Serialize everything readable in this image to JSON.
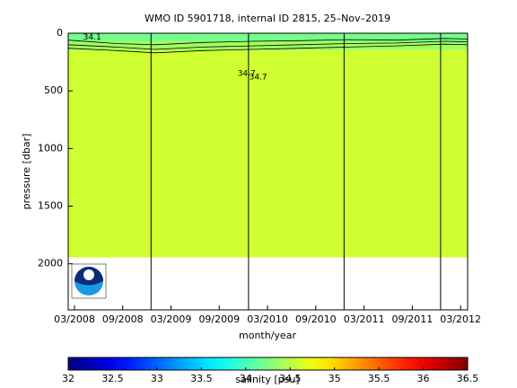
{
  "chart_data": {
    "type": "section",
    "title": "WMO ID 5901718, internal ID 2815, 25–Nov–2019",
    "x_label": "month/year",
    "y_label": "pressure [dbar]",
    "xlim": [
      2008.102,
      2012.24
    ],
    "xticks": [
      {
        "value": 2008.167,
        "label": "03/2008"
      },
      {
        "value": 2008.667,
        "label": "09/2008"
      },
      {
        "value": 2009.167,
        "label": "03/2009"
      },
      {
        "value": 2009.667,
        "label": "09/2009"
      },
      {
        "value": 2010.167,
        "label": "03/2010"
      },
      {
        "value": 2010.667,
        "label": "09/2010"
      },
      {
        "value": 2011.167,
        "label": "03/2011"
      },
      {
        "value": 2011.667,
        "label": "09/2011"
      },
      {
        "value": 2012.167,
        "label": "03/2012"
      }
    ],
    "ylim": [
      0,
      2400
    ],
    "y_inverted": true,
    "yticks": [
      0,
      500,
      1000,
      1500,
      2000
    ],
    "layers": [
      {
        "top": 0,
        "bottom": 70,
        "value": 34.2
      },
      {
        "top": 70,
        "bottom": 150,
        "value": 34.4
      },
      {
        "top": 150,
        "bottom": 1945,
        "value": 34.6
      }
    ],
    "contours": [
      {
        "x": [
          2008.1,
          2008.6,
          2009.0,
          2009.5,
          2010.0,
          2010.5,
          2011.0,
          2011.5,
          2012.0,
          2012.24
        ],
        "values": [
          60,
          90,
          100,
          80,
          70,
          65,
          55,
          60,
          45,
          50
        ]
      },
      {
        "x": [
          2008.1,
          2008.6,
          2009.0,
          2009.5,
          2010.0,
          2010.5,
          2011.0,
          2011.5,
          2012.0,
          2012.24
        ],
        "values": [
          100,
          120,
          140,
          120,
          110,
          100,
          90,
          85,
          70,
          75
        ]
      },
      {
        "x": [
          2008.1,
          2008.6,
          2009.0,
          2009.5,
          2010.0,
          2010.5,
          2011.0,
          2011.5,
          2012.0,
          2012.24
        ],
        "values": [
          130,
          150,
          170,
          150,
          140,
          130,
          120,
          110,
          95,
          100
        ]
      }
    ],
    "vertical_lines": [
      2008.96,
      2009.97,
      2010.96,
      2011.96
    ],
    "annotations": [
      {
        "text": "34.1",
        "x": 2008.35,
        "y": 35
      },
      {
        "text": "34.7",
        "x": 2009.95,
        "y": 350
      },
      {
        "text": "34.7",
        "x": 2010.07,
        "y": 380
      }
    ],
    "colorbar": {
      "label": "salinity [psu]",
      "clim": [
        32,
        36.5
      ],
      "ticks": [
        32,
        32.5,
        33,
        33.5,
        34,
        34.5,
        35,
        35.5,
        36,
        36.5
      ]
    }
  }
}
